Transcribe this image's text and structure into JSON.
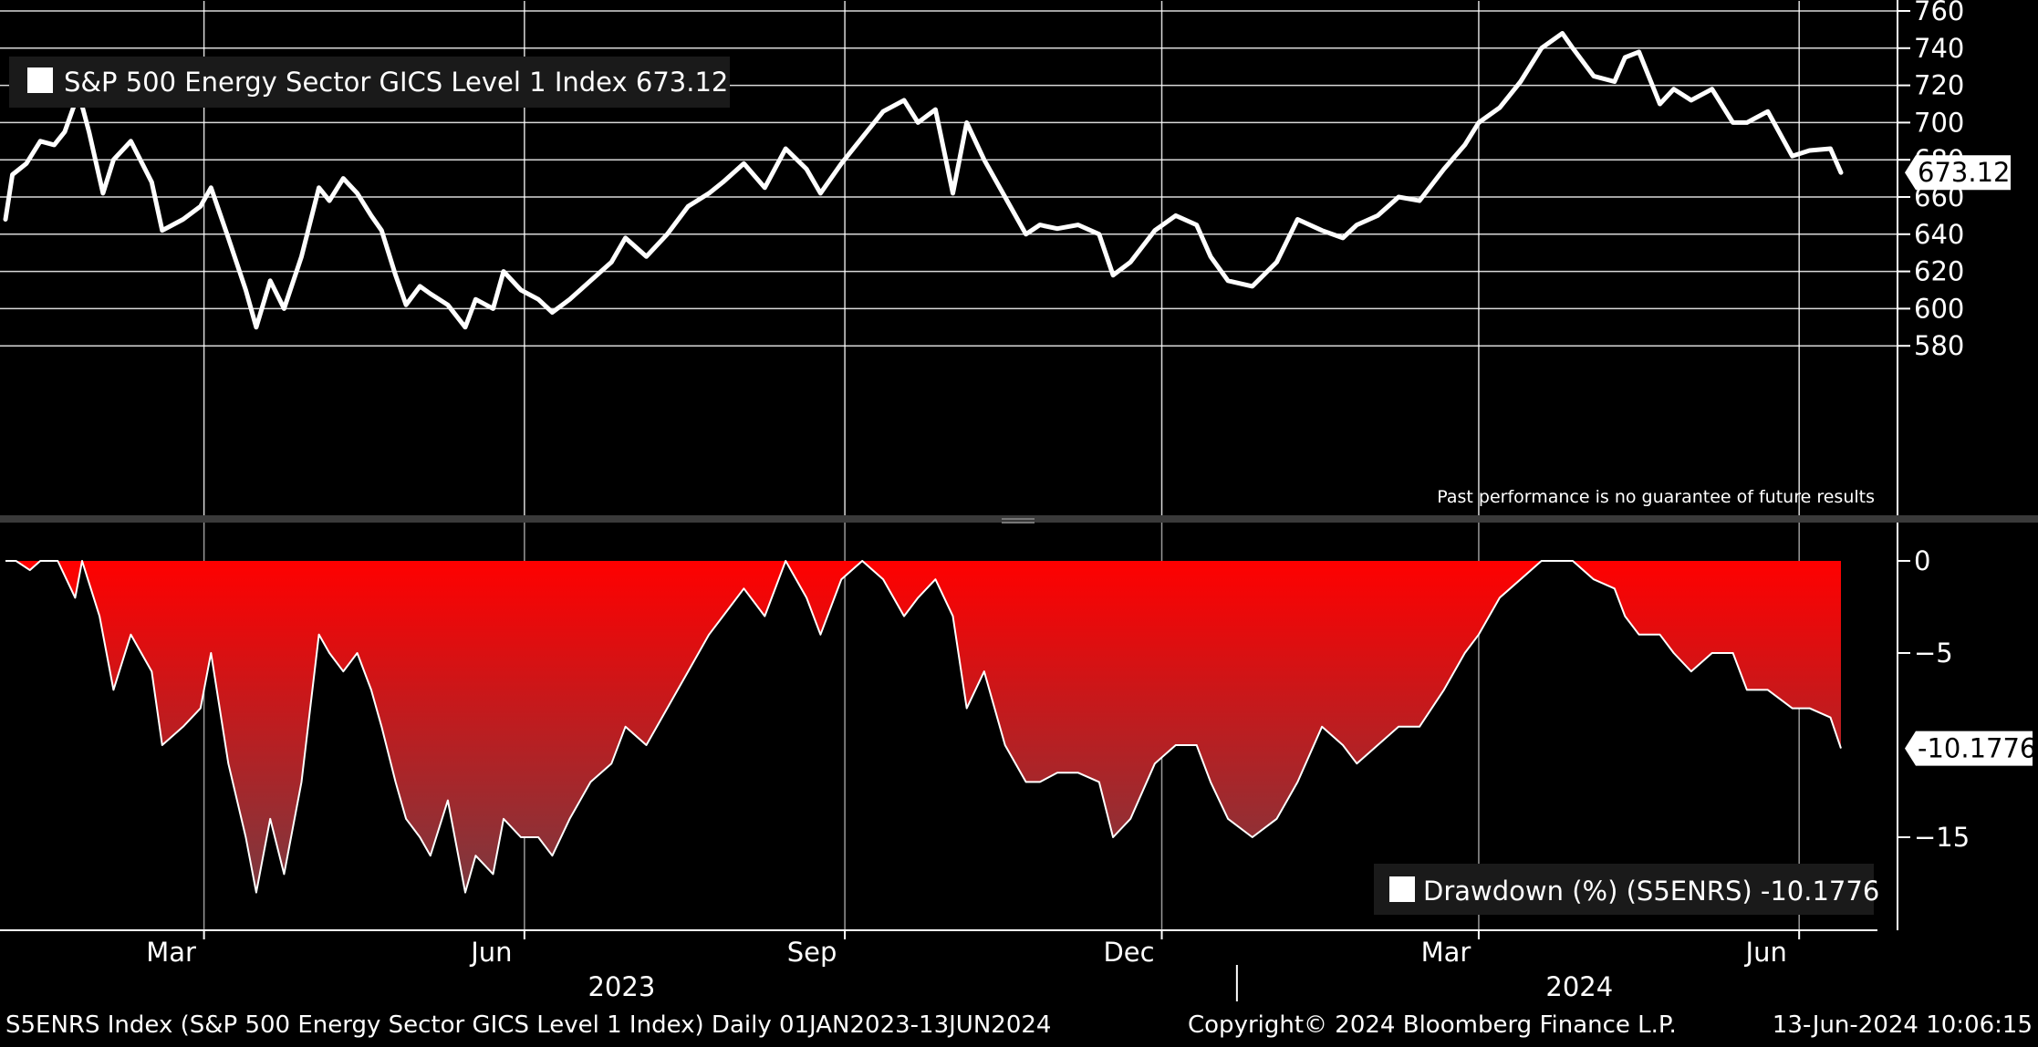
{
  "chart_data": [
    {
      "type": "line",
      "title": "",
      "legend": "S&P 500 Energy Sector GICS Level 1 Index 673.12",
      "last_value_label": "673.12",
      "y_ticks": [
        "760",
        "740",
        "720",
        "700",
        "680",
        "660",
        "640",
        "620",
        "600",
        "580"
      ],
      "ylim": [
        572,
        762
      ],
      "xlim": [
        "2023-01-03",
        "2024-06-13"
      ],
      "note": "Past performance is no guarantee of future results",
      "series": [
        {
          "x": [
            "2023-01-03",
            "2023-01-05",
            "2023-01-09",
            "2023-01-13",
            "2023-01-17",
            "2023-01-20",
            "2023-01-24",
            "2023-01-27",
            "2023-01-31",
            "2023-02-03",
            "2023-02-08",
            "2023-02-14",
            "2023-02-17",
            "2023-02-23",
            "2023-02-28",
            "2023-03-03",
            "2023-03-08",
            "2023-03-13",
            "2023-03-16",
            "2023-03-20",
            "2023-03-24",
            "2023-03-29",
            "2023-04-03",
            "2023-04-06",
            "2023-04-10",
            "2023-04-14",
            "2023-04-18",
            "2023-04-21",
            "2023-04-25",
            "2023-04-28",
            "2023-05-02",
            "2023-05-05",
            "2023-05-10",
            "2023-05-15",
            "2023-05-18",
            "2023-05-23",
            "2023-05-26",
            "2023-05-31",
            "2023-06-05",
            "2023-06-09",
            "2023-06-14",
            "2023-06-20",
            "2023-06-26",
            "2023-06-30",
            "2023-07-06",
            "2023-07-12",
            "2023-07-18",
            "2023-07-24",
            "2023-07-28",
            "2023-08-03",
            "2023-08-09",
            "2023-08-15",
            "2023-08-21",
            "2023-08-25",
            "2023-08-31",
            "2023-09-06",
            "2023-09-12",
            "2023-09-18",
            "2023-09-22",
            "2023-09-27",
            "2023-10-02",
            "2023-10-06",
            "2023-10-11",
            "2023-10-17",
            "2023-10-23",
            "2023-10-27",
            "2023-11-01",
            "2023-11-07",
            "2023-11-13",
            "2023-11-17",
            "2023-11-22",
            "2023-11-29",
            "2023-12-05",
            "2023-12-11",
            "2023-12-15",
            "2023-12-20",
            "2023-12-27",
            "2024-01-03",
            "2024-01-09",
            "2024-01-16",
            "2024-01-22",
            "2024-01-26",
            "2024-02-01",
            "2024-02-07",
            "2024-02-13",
            "2024-02-20",
            "2024-02-26",
            "2024-03-01",
            "2024-03-07",
            "2024-03-13",
            "2024-03-19",
            "2024-03-25",
            "2024-03-28",
            "2024-04-03",
            "2024-04-09",
            "2024-04-12",
            "2024-04-16",
            "2024-04-22",
            "2024-04-26",
            "2024-05-01",
            "2024-05-07",
            "2024-05-13",
            "2024-05-17",
            "2024-05-23",
            "2024-05-30",
            "2024-06-04",
            "2024-06-10",
            "2024-06-13"
          ],
          "values": [
            648,
            672,
            678,
            690,
            688,
            695,
            716,
            695,
            662,
            680,
            690,
            668,
            642,
            648,
            655,
            665,
            638,
            610,
            590,
            615,
            600,
            628,
            665,
            658,
            670,
            662,
            650,
            642,
            618,
            602,
            612,
            608,
            602,
            590,
            605,
            600,
            620,
            610,
            605,
            598,
            605,
            615,
            625,
            638,
            628,
            640,
            655,
            662,
            668,
            678,
            665,
            686,
            675,
            662,
            678,
            692,
            706,
            712,
            700,
            707,
            662,
            700,
            680,
            660,
            640,
            645,
            643,
            645,
            640,
            618,
            625,
            642,
            650,
            645,
            628,
            615,
            612,
            625,
            648,
            642,
            638,
            645,
            650,
            660,
            658,
            675,
            688,
            700,
            708,
            722,
            740,
            748,
            740,
            725,
            722,
            735,
            738,
            710,
            718,
            712,
            718,
            700,
            700,
            706,
            682,
            685,
            686,
            673.12
          ]
        }
      ]
    },
    {
      "type": "area",
      "title": "",
      "legend": "Drawdown (%) (S5ENRS) -10.1776",
      "last_value_label": "-10.1776",
      "y_ticks": [
        "0",
        "-5",
        "-15"
      ],
      "ylim": [
        -20,
        0.6
      ],
      "series": [
        {
          "x": [
            "2023-01-03",
            "2023-01-06",
            "2023-01-10",
            "2023-01-13",
            "2023-01-18",
            "2023-01-23",
            "2023-01-25",
            "2023-01-30",
            "2023-02-03",
            "2023-02-08",
            "2023-02-14",
            "2023-02-17",
            "2023-02-23",
            "2023-02-28",
            "2023-03-03",
            "2023-03-08",
            "2023-03-13",
            "2023-03-16",
            "2023-03-20",
            "2023-03-24",
            "2023-03-29",
            "2023-04-03",
            "2023-04-06",
            "2023-04-10",
            "2023-04-14",
            "2023-04-18",
            "2023-04-21",
            "2023-04-25",
            "2023-04-28",
            "2023-05-02",
            "2023-05-05",
            "2023-05-10",
            "2023-05-15",
            "2023-05-18",
            "2023-05-23",
            "2023-05-26",
            "2023-05-31",
            "2023-06-05",
            "2023-06-09",
            "2023-06-14",
            "2023-06-20",
            "2023-06-26",
            "2023-06-30",
            "2023-07-06",
            "2023-07-12",
            "2023-07-18",
            "2023-07-24",
            "2023-07-28",
            "2023-08-03",
            "2023-08-09",
            "2023-08-15",
            "2023-08-21",
            "2023-08-25",
            "2023-08-31",
            "2023-09-06",
            "2023-09-12",
            "2023-09-18",
            "2023-09-22",
            "2023-09-27",
            "2023-10-02",
            "2023-10-06",
            "2023-10-11",
            "2023-10-17",
            "2023-10-23",
            "2023-10-27",
            "2023-11-01",
            "2023-11-07",
            "2023-11-13",
            "2023-11-17",
            "2023-11-22",
            "2023-11-29",
            "2023-12-05",
            "2023-12-11",
            "2023-12-15",
            "2023-12-20",
            "2023-12-27",
            "2024-01-03",
            "2024-01-09",
            "2024-01-16",
            "2024-01-22",
            "2024-01-26",
            "2024-02-01",
            "2024-02-07",
            "2024-02-13",
            "2024-02-20",
            "2024-02-26",
            "2024-03-01",
            "2024-03-07",
            "2024-03-13",
            "2024-03-19",
            "2024-03-25",
            "2024-03-28",
            "2024-04-03",
            "2024-04-09",
            "2024-04-12",
            "2024-04-16",
            "2024-04-22",
            "2024-04-26",
            "2024-05-01",
            "2024-05-07",
            "2024-05-13",
            "2024-05-17",
            "2024-05-23",
            "2024-05-30",
            "2024-06-04",
            "2024-06-10",
            "2024-06-13"
          ],
          "values": [
            0,
            0,
            -0.5,
            0,
            0,
            -2,
            0,
            -3,
            -7,
            -4,
            -6,
            -10,
            -9,
            -8,
            -5,
            -11,
            -15,
            -18,
            -14,
            -17,
            -12,
            -4,
            -5,
            -6,
            -5,
            -7,
            -9,
            -12,
            -14,
            -15,
            -16,
            -13,
            -18,
            -16,
            -17,
            -14,
            -15,
            -15,
            -16,
            -14,
            -12,
            -11,
            -9,
            -10,
            -8,
            -6,
            -4,
            -3,
            -1.5,
            -3,
            0,
            -2,
            -4,
            -1,
            0,
            -1,
            -3,
            -2,
            -1,
            -3,
            -8,
            -6,
            -10,
            -12,
            -12,
            -11.5,
            -11.5,
            -12,
            -15,
            -14,
            -11,
            -10,
            -10,
            -12,
            -14,
            -15,
            -14,
            -12,
            -9,
            -10,
            -11,
            -10,
            -9,
            -9,
            -7,
            -5,
            -4,
            -2,
            -1,
            0,
            0,
            0,
            -1,
            -1.5,
            -3,
            -4,
            -4,
            -5,
            -6,
            -5,
            -5,
            -7,
            -7,
            -8,
            -8,
            -8.5,
            -10.1776
          ]
        }
      ]
    }
  ],
  "x_axis": {
    "month_ticks": [
      {
        "label": "Mar",
        "date": "2023-03-01"
      },
      {
        "label": "Jun",
        "date": "2023-06-01"
      },
      {
        "label": "Sep",
        "date": "2023-09-01"
      },
      {
        "label": "Dec",
        "date": "2023-12-01"
      },
      {
        "label": "Mar",
        "date": "2024-03-01"
      },
      {
        "label": "Jun",
        "date": "2024-06-01"
      }
    ],
    "years": [
      {
        "label": "2023",
        "date": "2023-07-01"
      },
      {
        "label": "2024",
        "date": "2024-04-01"
      }
    ],
    "year_divider_date": "2024-01-01"
  },
  "footer": {
    "left": "S5ENRS Index (S&P 500 Energy Sector GICS Level 1 Index)  Daily 01JAN2023-13JUN2024",
    "copyright": "Copyright© 2024 Bloomberg Finance L.P.",
    "timestamp": "13-Jun-2024 10:06:15"
  },
  "colors": {
    "background": "#000000",
    "line": "#ffffff",
    "grid": "#ffffff",
    "area_top": "#ff0000",
    "area_bottom": "#7a3a40"
  }
}
